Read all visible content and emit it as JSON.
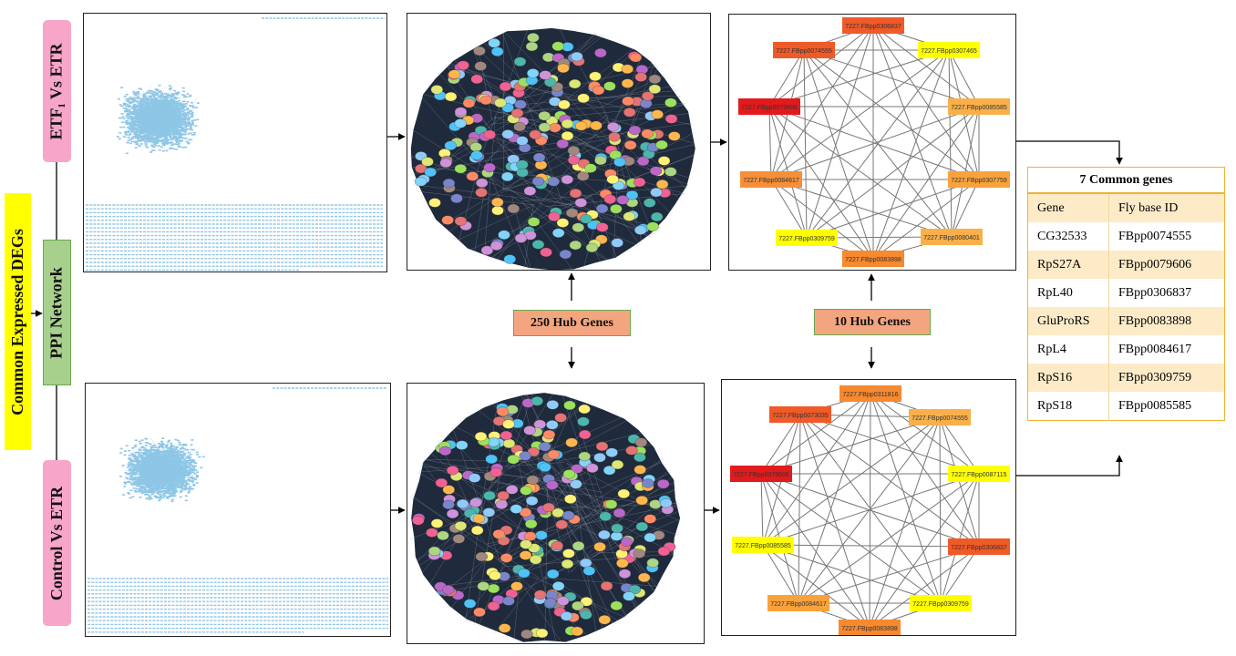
{
  "labels": {
    "common_degs": "Common Expressed DEGs",
    "ppi_network": "PPI Network",
    "etf1_vs_etr": "ETF₁ Vs ETR",
    "control_vs_etr": "Control Vs ETR"
  },
  "hub_boxes": {
    "hub250": "250 Hub Genes",
    "hub10": "10 Hub Genes"
  },
  "top_hub_network": {
    "nodes": [
      {
        "label": "7227.FBpp0306837",
        "color": "#f05a28"
      },
      {
        "label": "7227.FBpp0307465",
        "color": "#ffff00"
      },
      {
        "label": "7227.FBpp0085585",
        "color": "#f9b04a"
      },
      {
        "label": "7227.FBpp0307759",
        "color": "#f9a23c"
      },
      {
        "label": "7227.FBpp0080401",
        "color": "#f9b04a"
      },
      {
        "label": "7227.FBpp0083898",
        "color": "#f7892f"
      },
      {
        "label": "7227.FBpp0309759",
        "color": "#ffff00"
      },
      {
        "label": "7227.FBpp0084617",
        "color": "#f68f3a"
      },
      {
        "label": "7227.FBpp0079606",
        "color": "#e31a1c"
      },
      {
        "label": "7227.FBpp0074555",
        "color": "#f05a28"
      }
    ]
  },
  "bottom_hub_network": {
    "nodes": [
      {
        "label": "7227.FBpp0311816",
        "color": "#f7892f"
      },
      {
        "label": "7227.FBpp0074555",
        "color": "#f9b04a"
      },
      {
        "label": "7227.FBpp0087115",
        "color": "#ffff00"
      },
      {
        "label": "7227.FBpp0306837",
        "color": "#f05a28"
      },
      {
        "label": "7227.FBpp0309759",
        "color": "#ffff00"
      },
      {
        "label": "7227.FBpp0083898",
        "color": "#f7892f"
      },
      {
        "label": "7227.FBpp0084617",
        "color": "#f9a23c"
      },
      {
        "label": "7227.FBpp0085585",
        "color": "#ffff00"
      },
      {
        "label": "7227.FBpp0079606",
        "color": "#e31a1c"
      },
      {
        "label": "7227.FBpp0073035",
        "color": "#f05a28"
      }
    ]
  },
  "common_genes": {
    "title": "7 Common genes",
    "headers": [
      "Gene",
      "Fly base ID"
    ],
    "rows": [
      [
        "CG32533",
        "FBpp0074555"
      ],
      [
        "RpS27A",
        "FBpp0079606"
      ],
      [
        "RpL40",
        "FBpp0306837"
      ],
      [
        "GluProRS",
        "FBpp0083898"
      ],
      [
        "RpL4",
        "FBpp0084617"
      ],
      [
        "RpS16",
        "FBpp0309759"
      ],
      [
        "RpS18",
        "FBpp0085585"
      ]
    ]
  },
  "colors": {
    "label_pink": "#f7a6c9",
    "label_green": "#a8d08d",
    "label_yellow": "#ffff00",
    "cloud_blue": "#8ec6e6",
    "network_bg": "#1f2a3c",
    "table_border": "#f2b134",
    "table_band": "#fdebc8"
  }
}
